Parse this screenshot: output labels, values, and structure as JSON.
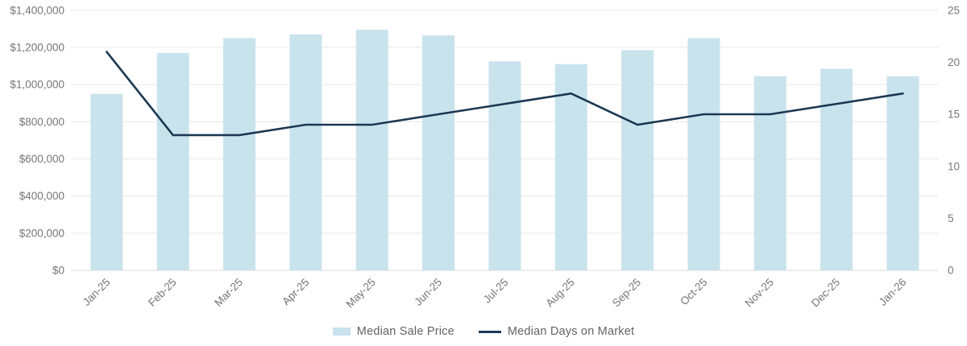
{
  "chart_data": {
    "type": "bar",
    "subtype": "combo-bar-line",
    "title": "",
    "categories": [
      "Jan-25",
      "Feb-25",
      "Mar-25",
      "Apr-25",
      "May-25",
      "Jun-25",
      "Jul-25",
      "Aug-25",
      "Sep-25",
      "Oct-25",
      "Nov-25",
      "Dec-25",
      "Jan-26"
    ],
    "series": [
      {
        "name": "Median Sale Price",
        "type": "bar",
        "axis": "left",
        "values": [
          950000,
          1170000,
          1250000,
          1270000,
          1295000,
          1265000,
          1125000,
          1110000,
          1185000,
          1250000,
          1045000,
          1085000,
          1045000
        ]
      },
      {
        "name": "Median Days on Market",
        "type": "line",
        "axis": "right",
        "values": [
          21,
          13,
          13,
          14,
          14,
          15,
          16,
          17,
          14,
          15,
          15,
          16,
          17
        ]
      }
    ],
    "left_axis": {
      "min": 0,
      "max": 1400000,
      "step": 200000,
      "tick_labels": [
        "$0",
        "$200,000",
        "$400,000",
        "$600,000",
        "$800,000",
        "$1,000,000",
        "$1,200,000",
        "$1,400,000"
      ]
    },
    "right_axis": {
      "min": 0,
      "max": 25,
      "step": 5,
      "tick_labels": [
        "0",
        "5",
        "10",
        "15",
        "20",
        "25"
      ]
    },
    "legend": {
      "position": "bottom",
      "items": [
        {
          "label": "Median Sale Price",
          "swatch": "bar"
        },
        {
          "label": "Median Days on Market",
          "swatch": "line"
        }
      ]
    },
    "grid": {
      "horizontal": true,
      "vertical": false
    }
  },
  "style": {
    "bar_color": "#c9e3ec",
    "line_color": "#1b3852",
    "grid_color": "#e6e6e6",
    "baseline_color": "#dadada",
    "axis_text_color": "#767676",
    "legend_text_color": "#636363",
    "background": "#ffffff"
  }
}
